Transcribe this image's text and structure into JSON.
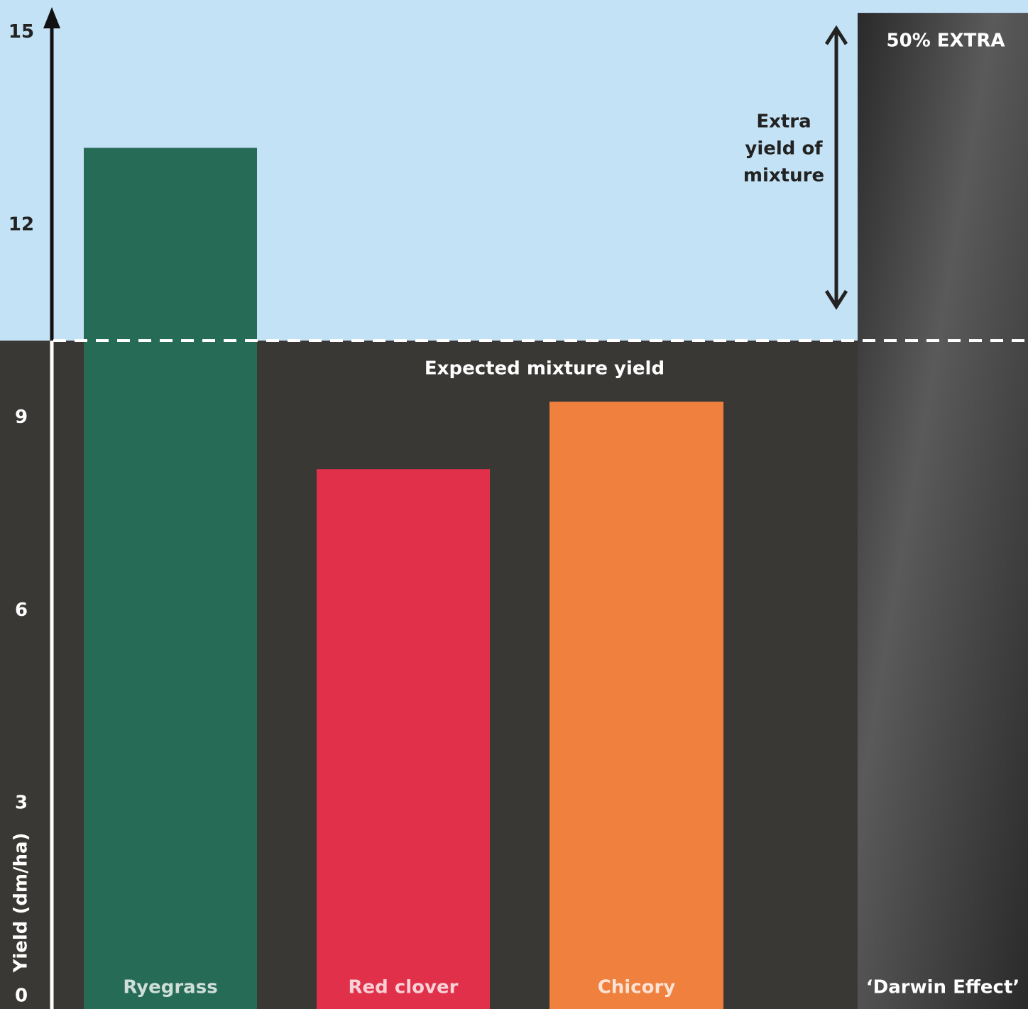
{
  "chart_data": {
    "type": "bar",
    "y_label": "Yield (dm/ha)",
    "categories": [
      "Ryegrass",
      "Red clover",
      "Chicory",
      "‘Darwin Effect’"
    ],
    "values": [
      13.2,
      8.2,
      9.25,
      15.3
    ],
    "colors": [
      "#256b55",
      "#e0304a",
      "#f0803e",
      "#222222"
    ],
    "ylim": [
      -0.2,
      15.5
    ],
    "yticks": [
      0,
      3,
      6,
      9,
      12,
      15
    ],
    "reference_line": {
      "value": 10.2,
      "label": "Expected mixture yield"
    },
    "annotation_lines": [
      "Extra",
      "yield of",
      "mixture"
    ],
    "darwin_label": "50% EXTRA"
  }
}
